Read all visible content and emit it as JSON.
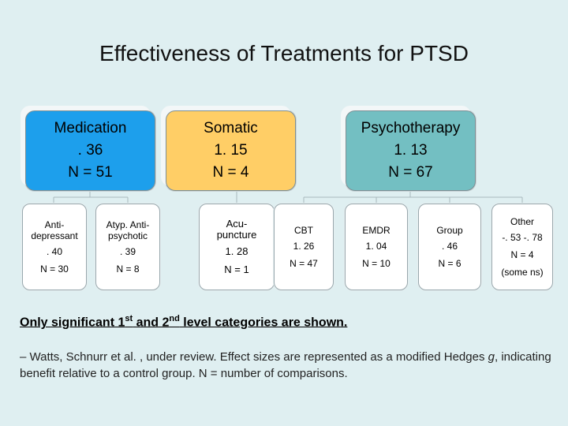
{
  "title": "Effectiveness of Treatments for PTSD",
  "categories": [
    {
      "label": "Medication",
      "value": ". 36",
      "n": "N = 51",
      "color": "#1d9fec"
    },
    {
      "label": "Somatic",
      "value": "1. 15",
      "n": "N = 4",
      "color": "#ffce66"
    },
    {
      "label": "Psychotherapy",
      "value": "1. 13",
      "n": "N = 67",
      "color": "#73bfc2"
    }
  ],
  "subcategories": {
    "anti": {
      "label1": "Anti-",
      "label2": "depressant",
      "value": ". 40",
      "n": "N = 30"
    },
    "atyp": {
      "label1": "Atyp. Anti-",
      "label2": "psychotic",
      "value": ". 39",
      "n": "N = 8"
    },
    "acu": {
      "label1": "Acu-",
      "label2": "puncture",
      "value": "1. 28",
      "n": "N = 1"
    },
    "cbt": {
      "label": "CBT",
      "value": "1. 26",
      "n": "N = 47"
    },
    "emdr": {
      "label": "EMDR",
      "value": "1. 04",
      "n": "N = 10"
    },
    "group": {
      "label": "Group",
      "value": ". 46",
      "n": "N = 6"
    },
    "other": {
      "label": "Other",
      "value": "-. 53 -. 78",
      "n": "N = 4",
      "note": "(some ns)"
    }
  },
  "note": {
    "part1": "Only significant 1",
    "sup1": "st",
    "part2": " and 2",
    "sup2": "nd",
    "part3": " level categories are shown."
  },
  "citation": {
    "prefix": "– Watts, Schnurr et al. , under review. Effect sizes are represented as a modified Hedges ",
    "g": "g",
    "suffix": ", indicating benefit relative to a control group. N = number of comparisons."
  }
}
